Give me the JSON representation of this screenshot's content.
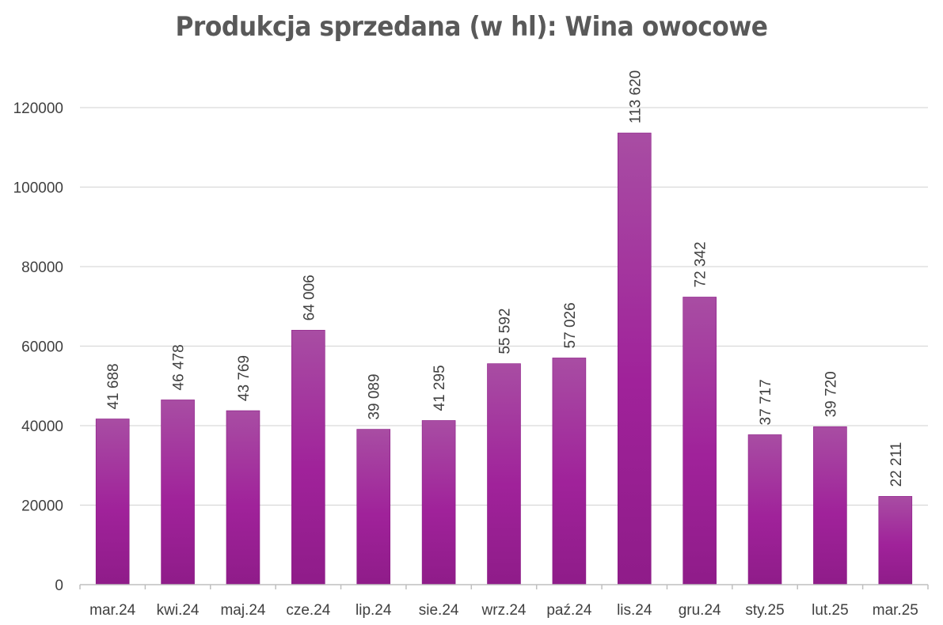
{
  "chart_data": {
    "type": "bar",
    "title": "Produkcja sprzedana (w hl): Wina owocowe",
    "categories": [
      "mar.24",
      "kwi.24",
      "maj.24",
      "cze.24",
      "lip.24",
      "sie.24",
      "wrz.24",
      "paź.24",
      "lis.24",
      "gru.24",
      "sty.25",
      "lut.25",
      "mar.25"
    ],
    "values": [
      41688,
      46478,
      43769,
      64006,
      39089,
      41295,
      55592,
      57026,
      113620,
      72342,
      37717,
      39720,
      22211
    ],
    "data_labels": [
      "41 688",
      "46 478",
      "43 769",
      "64 006",
      "39 089",
      "41 295",
      "55 592",
      "57 026",
      "113 620",
      "72 342",
      "37 717",
      "39 720",
      "22 211"
    ],
    "y_ticks": [
      0,
      20000,
      40000,
      60000,
      80000,
      100000,
      120000
    ],
    "ylim": [
      0,
      120000
    ],
    "grid": true,
    "legend": "none",
    "bar_color": "#a0229a"
  }
}
